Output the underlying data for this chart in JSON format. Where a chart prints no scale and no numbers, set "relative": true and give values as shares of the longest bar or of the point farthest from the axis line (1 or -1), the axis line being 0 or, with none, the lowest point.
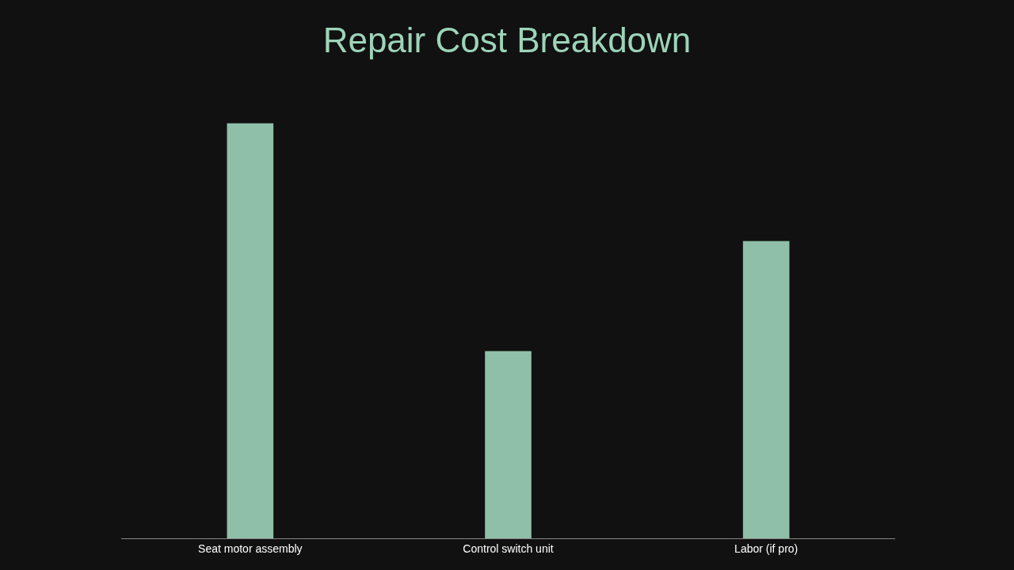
{
  "chart_data": {
    "type": "bar",
    "title": "Repair Cost Breakdown",
    "categories": [
      "Seat motor assembly",
      "Control switch unit",
      "Labor (if pro)"
    ],
    "values": [
      1,
      0.451,
      0.716
    ],
    "color": "#8fbfa8",
    "relative": true,
    "grid": false,
    "legend": false
  }
}
